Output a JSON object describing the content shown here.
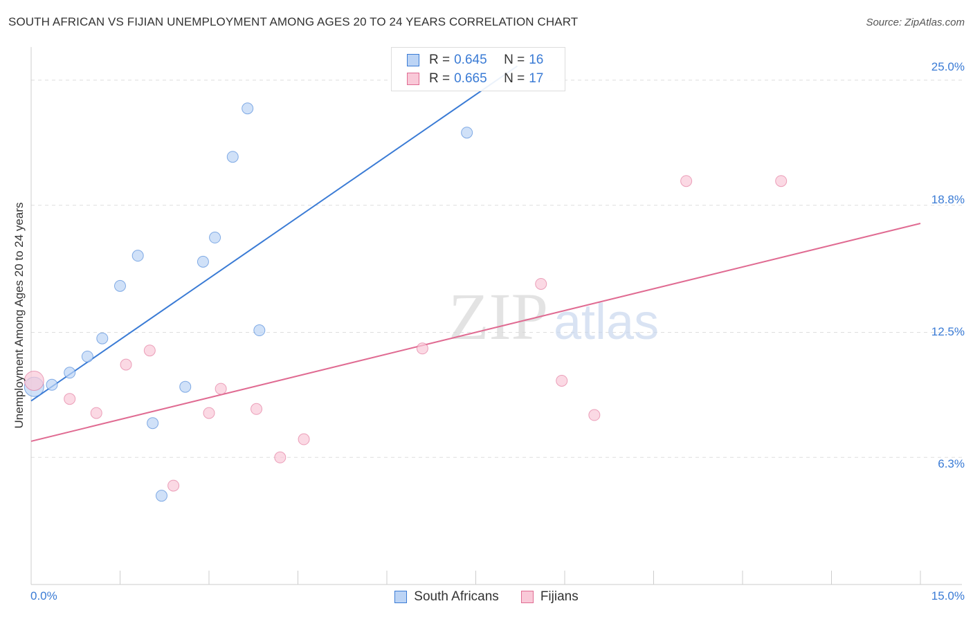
{
  "title": "SOUTH AFRICAN VS FIJIAN UNEMPLOYMENT AMONG AGES 20 TO 24 YEARS CORRELATION CHART",
  "source": "Source: ZipAtlas.com",
  "legend_top": {
    "rows": [
      {
        "r_label": "R = ",
        "r_value": "0.645",
        "n_label": "N = ",
        "n_value": "16"
      },
      {
        "r_label": "R = ",
        "r_value": "0.665",
        "n_label": "N = ",
        "n_value": "17"
      }
    ]
  },
  "legend_bottom": {
    "south_africans": "South Africans",
    "fijians": "Fijians"
  },
  "y_ticks": [
    "25.0%",
    "18.8%",
    "12.5%",
    "6.3%"
  ],
  "x_ticks": [
    "0.0%",
    "15.0%"
  ],
  "colors": {
    "blue": "#3a7bd5",
    "blue_fill": "#bcd4f5",
    "pink": "#e06b92",
    "pink_fill": "#f9c9d8",
    "grid": "#dddddd",
    "axis": "#cccccc"
  },
  "chart_data": {
    "type": "scatter",
    "title": "SOUTH AFRICAN VS FIJIAN UNEMPLOYMENT AMONG AGES 20 TO 24 YEARS CORRELATION CHART",
    "xlabel": "",
    "ylabel": "Unemployment Among Ages 20 to 24 years",
    "xlim": [
      0,
      15
    ],
    "ylim": [
      0,
      26.3
    ],
    "y_gridlines": [
      6.3,
      12.5,
      18.8,
      25.0
    ],
    "grid": true,
    "series": [
      {
        "name": "South Africans",
        "color": "#3a7bd5",
        "points": [
          [
            0.05,
            9.8
          ],
          [
            0.35,
            9.9
          ],
          [
            0.65,
            10.5
          ],
          [
            0.95,
            11.3
          ],
          [
            1.2,
            12.2
          ],
          [
            1.5,
            14.8
          ],
          [
            1.8,
            16.3
          ],
          [
            2.05,
            8.0
          ],
          [
            2.2,
            4.4
          ],
          [
            2.6,
            9.8
          ],
          [
            2.9,
            16.0
          ],
          [
            3.1,
            17.2
          ],
          [
            3.4,
            21.2
          ],
          [
            3.65,
            23.6
          ],
          [
            3.85,
            12.6
          ],
          [
            7.35,
            22.4
          ]
        ],
        "trend": {
          "x": [
            0.0,
            8.2
          ],
          "y": [
            9.1,
            25.7
          ]
        }
      },
      {
        "name": "Fijians",
        "color": "#e06b92",
        "points": [
          [
            0.05,
            10.1
          ],
          [
            0.65,
            9.2
          ],
          [
            1.1,
            8.5
          ],
          [
            1.6,
            10.9
          ],
          [
            2.0,
            11.6
          ],
          [
            2.4,
            4.9
          ],
          [
            3.0,
            8.5
          ],
          [
            3.2,
            9.7
          ],
          [
            3.8,
            8.7
          ],
          [
            4.2,
            6.3
          ],
          [
            4.6,
            7.2
          ],
          [
            6.6,
            11.7
          ],
          [
            8.6,
            14.9
          ],
          [
            8.95,
            10.1
          ],
          [
            9.5,
            8.4
          ],
          [
            11.05,
            20.0
          ],
          [
            12.65,
            20.0
          ]
        ],
        "trend": {
          "x": [
            0.0,
            15.0
          ],
          "y": [
            7.1,
            17.9
          ]
        }
      }
    ]
  }
}
